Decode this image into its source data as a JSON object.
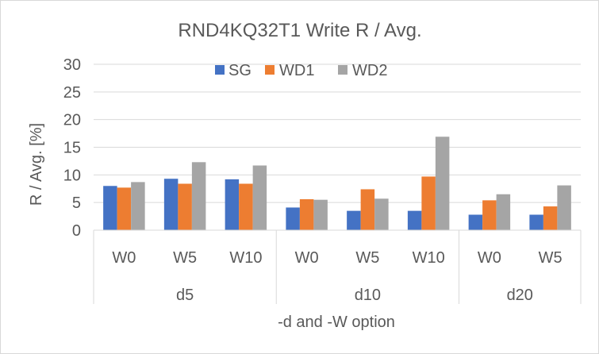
{
  "chart_data": {
    "type": "bar",
    "title": "RND4KQ32T1 Write R / Avg.",
    "xlabel": "-d and -W option",
    "ylabel": "R / Avg. [%]",
    "ylim": [
      0,
      30
    ],
    "yticks": [
      0,
      5,
      10,
      15,
      20,
      25,
      30
    ],
    "grid": true,
    "legend_position": "top",
    "groups": [
      {
        "label": "d5",
        "categories": [
          "W0",
          "W5",
          "W10"
        ]
      },
      {
        "label": "d10",
        "categories": [
          "W0",
          "W5",
          "W10"
        ]
      },
      {
        "label": "d20",
        "categories": [
          "W0",
          "W5"
        ]
      }
    ],
    "series": [
      {
        "name": "SG",
        "color": "#4472C4",
        "values": [
          8.0,
          9.3,
          9.2,
          4.1,
          3.5,
          3.5,
          2.8,
          2.8
        ]
      },
      {
        "name": "WD1",
        "color": "#ED7D31",
        "values": [
          7.7,
          8.4,
          8.4,
          5.6,
          7.4,
          9.7,
          5.4,
          4.3
        ]
      },
      {
        "name": "WD2",
        "color": "#A5A5A5",
        "values": [
          8.7,
          12.3,
          11.7,
          5.5,
          5.7,
          16.9,
          6.5,
          8.1
        ]
      }
    ]
  }
}
